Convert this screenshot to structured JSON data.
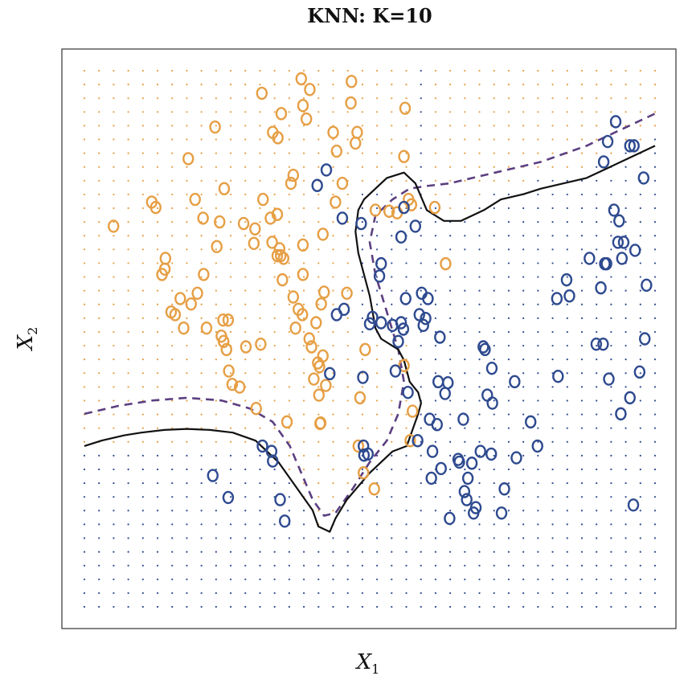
{
  "chart_data": {
    "type": "scatter",
    "title": "KNN: K=10",
    "xlabel": "X",
    "xlabel_subscript": "1",
    "ylabel": "X",
    "ylabel_subscript": "2",
    "xlim": [
      0,
      1
    ],
    "ylim": [
      0,
      1
    ],
    "ticks_shown": false,
    "grid_dot_count": [
      40,
      40
    ],
    "colors": {
      "orange": "#E69F45",
      "blue": "#2E4A8F",
      "knn_boundary": "#111111",
      "bayes_boundary": "#5B3F80"
    },
    "series": [
      {
        "class": "orange",
        "points": [
          [
            0.051,
            0.71
          ],
          [
            0.125,
            0.745
          ],
          [
            0.118,
            0.755
          ],
          [
            0.142,
            0.65
          ],
          [
            0.141,
            0.63
          ],
          [
            0.136,
            0.62
          ],
          [
            0.152,
            0.55
          ],
          [
            0.168,
            0.575
          ],
          [
            0.159,
            0.545
          ],
          [
            0.174,
            0.52
          ],
          [
            0.187,
            0.565
          ],
          [
            0.198,
            0.585
          ],
          [
            0.194,
            0.76
          ],
          [
            0.182,
            0.836
          ],
          [
            0.209,
            0.62
          ],
          [
            0.214,
            0.52
          ],
          [
            0.208,
            0.725
          ],
          [
            0.237,
            0.718
          ],
          [
            0.232,
            0.672
          ],
          [
            0.229,
            0.895
          ],
          [
            0.243,
            0.535
          ],
          [
            0.244,
            0.495
          ],
          [
            0.245,
            0.78
          ],
          [
            0.24,
            0.505
          ],
          [
            0.249,
            0.48
          ],
          [
            0.253,
            0.44
          ],
          [
            0.252,
            0.535
          ],
          [
            0.259,
            0.415
          ],
          [
            0.279,
            0.715
          ],
          [
            0.283,
            0.485
          ],
          [
            0.272,
            0.41
          ],
          [
            0.297,
            0.678
          ],
          [
            0.299,
            0.705
          ],
          [
            0.301,
            0.37
          ],
          [
            0.309,
            0.49
          ],
          [
            0.311,
            0.958
          ],
          [
            0.313,
            0.76
          ],
          [
            0.326,
            0.725
          ],
          [
            0.33,
            0.885
          ],
          [
            0.329,
            0.68
          ],
          [
            0.338,
            0.655
          ],
          [
            0.344,
            0.655
          ],
          [
            0.349,
            0.65
          ],
          [
            0.342,
            0.668
          ],
          [
            0.347,
            0.61
          ],
          [
            0.339,
            0.875
          ],
          [
            0.345,
            0.92
          ],
          [
            0.338,
            0.732
          ],
          [
            0.355,
            0.345
          ],
          [
            0.362,
            0.79
          ],
          [
            0.366,
            0.805
          ],
          [
            0.366,
            0.578
          ],
          [
            0.37,
            0.52
          ],
          [
            0.375,
            0.555
          ],
          [
            0.382,
            0.545
          ],
          [
            0.383,
            0.675
          ],
          [
            0.383,
            0.62
          ],
          [
            0.38,
            0.985
          ],
          [
            0.383,
            0.935
          ],
          [
            0.389,
            0.91
          ],
          [
            0.395,
            0.965
          ],
          [
            0.394,
            0.5
          ],
          [
            0.398,
            0.485
          ],
          [
            0.402,
            0.425
          ],
          [
            0.406,
            0.53
          ],
          [
            0.409,
            0.455
          ],
          [
            0.412,
            0.448
          ],
          [
            0.411,
            0.395
          ],
          [
            0.413,
            0.342
          ],
          [
            0.414,
            0.343
          ],
          [
            0.423,
            0.413
          ],
          [
            0.418,
            0.468
          ],
          [
            0.418,
            0.695
          ],
          [
            0.415,
            0.565
          ],
          [
            0.42,
            0.587
          ],
          [
            0.436,
            0.885
          ],
          [
            0.442,
            0.85
          ],
          [
            0.44,
            0.755
          ],
          [
            0.452,
            0.79
          ],
          [
            0.468,
            0.98
          ],
          [
            0.467,
            0.94
          ],
          [
            0.478,
            0.885
          ],
          [
            0.475,
            0.865
          ],
          [
            0.483,
            0.39
          ],
          [
            0.48,
            0.3
          ],
          [
            0.489,
            0.25
          ],
          [
            0.508,
            0.22
          ],
          [
            0.51,
            0.74
          ],
          [
            0.534,
            0.738
          ],
          [
            0.56,
            0.84
          ],
          [
            0.548,
            0.735
          ],
          [
            0.562,
            0.93
          ],
          [
            0.568,
            0.76
          ],
          [
            0.573,
            0.75
          ],
          [
            0.614,
            0.745
          ],
          [
            0.575,
            0.365
          ],
          [
            0.571,
            0.31
          ],
          [
            0.633,
            0.64
          ],
          [
            0.56,
            0.45
          ],
          [
            0.46,
            0.585
          ],
          [
            0.492,
            0.48
          ]
        ]
      },
      {
        "class": "blue",
        "points": [
          [
            0.225,
            0.245
          ],
          [
            0.252,
            0.204
          ],
          [
            0.312,
            0.3
          ],
          [
            0.328,
            0.29
          ],
          [
            0.33,
            0.272
          ],
          [
            0.343,
            0.2
          ],
          [
            0.351,
            0.16
          ],
          [
            0.408,
            0.786
          ],
          [
            0.424,
            0.815
          ],
          [
            0.452,
            0.725
          ],
          [
            0.485,
            0.715
          ],
          [
            0.43,
            0.435
          ],
          [
            0.442,
            0.545
          ],
          [
            0.455,
            0.555
          ],
          [
            0.488,
            0.428
          ],
          [
            0.489,
            0.3
          ],
          [
            0.49,
            0.283
          ],
          [
            0.497,
            0.285
          ],
          [
            0.5,
            0.528
          ],
          [
            0.505,
            0.54
          ],
          [
            0.517,
            0.617
          ],
          [
            0.52,
            0.64
          ],
          [
            0.52,
            0.53
          ],
          [
            0.54,
            0.525
          ],
          [
            0.545,
            0.44
          ],
          [
            0.55,
            0.495
          ],
          [
            0.555,
            0.53
          ],
          [
            0.555,
            0.69
          ],
          [
            0.559,
            0.518
          ],
          [
            0.56,
            0.745
          ],
          [
            0.563,
            0.575
          ],
          [
            0.567,
            0.4
          ],
          [
            0.58,
            0.71
          ],
          [
            0.584,
            0.31
          ],
          [
            0.587,
            0.545
          ],
          [
            0.591,
            0.585
          ],
          [
            0.594,
            0.525
          ],
          [
            0.598,
            0.538
          ],
          [
            0.602,
            0.575
          ],
          [
            0.605,
            0.35
          ],
          [
            0.608,
            0.24
          ],
          [
            0.61,
            0.29
          ],
          [
            0.618,
            0.34
          ],
          [
            0.62,
            0.42
          ],
          [
            0.623,
            0.503
          ],
          [
            0.625,
            0.258
          ],
          [
            0.632,
            0.398
          ],
          [
            0.637,
            0.418
          ],
          [
            0.64,
            0.165
          ],
          [
            0.655,
            0.275
          ],
          [
            0.657,
            0.27
          ],
          [
            0.664,
            0.35
          ],
          [
            0.666,
            0.215
          ],
          [
            0.67,
            0.2
          ],
          [
            0.672,
            0.24
          ],
          [
            0.679,
            0.268
          ],
          [
            0.682,
            0.175
          ],
          [
            0.686,
            0.185
          ],
          [
            0.694,
            0.29
          ],
          [
            0.699,
            0.485
          ],
          [
            0.702,
            0.48
          ],
          [
            0.706,
            0.395
          ],
          [
            0.713,
            0.285
          ],
          [
            0.714,
            0.445
          ],
          [
            0.715,
            0.38
          ],
          [
            0.731,
            0.175
          ],
          [
            0.736,
            0.22
          ],
          [
            0.754,
            0.42
          ],
          [
            0.757,
            0.278
          ],
          [
            0.782,
            0.345
          ],
          [
            0.794,
            0.3
          ],
          [
            0.828,
            0.575
          ],
          [
            0.83,
            0.43
          ],
          [
            0.845,
            0.61
          ],
          [
            0.85,
            0.58
          ],
          [
            0.885,
            0.65
          ],
          [
            0.905,
            0.595
          ],
          [
            0.915,
            0.64
          ],
          [
            0.897,
            0.49
          ],
          [
            0.909,
            0.49
          ],
          [
            0.919,
            0.425
          ],
          [
            0.94,
            0.36
          ],
          [
            0.935,
            0.68
          ],
          [
            0.942,
            0.65
          ],
          [
            0.965,
            0.665
          ],
          [
            0.985,
            0.6
          ],
          [
            0.982,
            0.5
          ],
          [
            0.973,
            0.438
          ],
          [
            0.956,
            0.39
          ],
          [
            0.962,
            0.19
          ],
          [
            0.91,
            0.83
          ],
          [
            0.931,
            0.905
          ],
          [
            0.917,
            0.868
          ],
          [
            0.963,
            0.86
          ],
          [
            0.956,
            0.86
          ],
          [
            0.98,
            0.8
          ],
          [
            0.928,
            0.74
          ],
          [
            0.937,
            0.72
          ],
          [
            0.945,
            0.68
          ],
          [
            0.912,
            0.64
          ]
        ]
      }
    ],
    "knn_boundary": [
      [
        0.0,
        0.3
      ],
      [
        0.03,
        0.31
      ],
      [
        0.07,
        0.32
      ],
      [
        0.1,
        0.325
      ],
      [
        0.14,
        0.33
      ],
      [
        0.18,
        0.332
      ],
      [
        0.22,
        0.33
      ],
      [
        0.26,
        0.325
      ],
      [
        0.3,
        0.31
      ],
      [
        0.32,
        0.29
      ],
      [
        0.34,
        0.27
      ],
      [
        0.36,
        0.24
      ],
      [
        0.38,
        0.21
      ],
      [
        0.4,
        0.18
      ],
      [
        0.41,
        0.15
      ],
      [
        0.43,
        0.14
      ],
      [
        0.44,
        0.165
      ],
      [
        0.46,
        0.2
      ],
      [
        0.5,
        0.25
      ],
      [
        0.54,
        0.29
      ],
      [
        0.565,
        0.3
      ],
      [
        0.585,
        0.36
      ],
      [
        0.59,
        0.38
      ],
      [
        0.585,
        0.4
      ],
      [
        0.57,
        0.42
      ],
      [
        0.56,
        0.46
      ],
      [
        0.55,
        0.48
      ],
      [
        0.52,
        0.5
      ],
      [
        0.51,
        0.52
      ],
      [
        0.505,
        0.55
      ],
      [
        0.5,
        0.58
      ],
      [
        0.49,
        0.62
      ],
      [
        0.48,
        0.66
      ],
      [
        0.475,
        0.7
      ],
      [
        0.48,
        0.74
      ],
      [
        0.49,
        0.76
      ],
      [
        0.51,
        0.78
      ],
      [
        0.53,
        0.8
      ],
      [
        0.56,
        0.81
      ],
      [
        0.58,
        0.79
      ],
      [
        0.6,
        0.74
      ],
      [
        0.63,
        0.72
      ],
      [
        0.66,
        0.72
      ],
      [
        0.7,
        0.74
      ],
      [
        0.73,
        0.76
      ],
      [
        0.77,
        0.77
      ],
      [
        0.8,
        0.78
      ],
      [
        0.84,
        0.79
      ],
      [
        0.88,
        0.8
      ],
      [
        0.92,
        0.82
      ],
      [
        0.96,
        0.84
      ],
      [
        1.0,
        0.86
      ]
    ],
    "bayes_boundary": [
      [
        0.0,
        0.36
      ],
      [
        0.06,
        0.375
      ],
      [
        0.12,
        0.385
      ],
      [
        0.18,
        0.39
      ],
      [
        0.24,
        0.385
      ],
      [
        0.29,
        0.37
      ],
      [
        0.33,
        0.345
      ],
      [
        0.36,
        0.3
      ],
      [
        0.38,
        0.25
      ],
      [
        0.4,
        0.2
      ],
      [
        0.42,
        0.17
      ],
      [
        0.44,
        0.175
      ],
      [
        0.47,
        0.22
      ],
      [
        0.5,
        0.27
      ],
      [
        0.53,
        0.31
      ],
      [
        0.55,
        0.36
      ],
      [
        0.56,
        0.42
      ],
      [
        0.55,
        0.48
      ],
      [
        0.53,
        0.55
      ],
      [
        0.51,
        0.62
      ],
      [
        0.5,
        0.68
      ],
      [
        0.51,
        0.73
      ],
      [
        0.54,
        0.76
      ],
      [
        0.57,
        0.78
      ],
      [
        0.6,
        0.785
      ],
      [
        0.64,
        0.79
      ],
      [
        0.68,
        0.8
      ],
      [
        0.72,
        0.81
      ],
      [
        0.76,
        0.82
      ],
      [
        0.8,
        0.83
      ],
      [
        0.84,
        0.845
      ],
      [
        0.88,
        0.86
      ],
      [
        0.92,
        0.88
      ],
      [
        0.96,
        0.9
      ],
      [
        1.0,
        0.92
      ]
    ]
  }
}
